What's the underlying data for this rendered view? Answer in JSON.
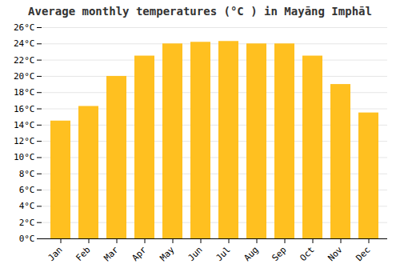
{
  "chart_data": {
    "type": "bar",
    "title": "Average monthly temperatures (°C ) in Mayāng Imphāl",
    "categories": [
      "Jan",
      "Feb",
      "Mar",
      "Apr",
      "May",
      "Jun",
      "Jul",
      "Aug",
      "Sep",
      "Oct",
      "Nov",
      "Dec"
    ],
    "values": [
      14.5,
      16.3,
      20.0,
      22.5,
      24.0,
      24.2,
      24.3,
      24.0,
      24.0,
      22.5,
      19.0,
      15.5
    ],
    "color": "#FFC020",
    "ylim": [
      0,
      26
    ],
    "yticks": [
      {
        "value": 0,
        "label": "0°C"
      },
      {
        "value": 2,
        "label": "2°C"
      },
      {
        "value": 4,
        "label": "4°C"
      },
      {
        "value": 6,
        "label": "6°C"
      },
      {
        "value": 8,
        "label": "8°C"
      },
      {
        "value": 10,
        "label": "10°C"
      },
      {
        "value": 12,
        "label": "12°C"
      },
      {
        "value": 14,
        "label": "14°C"
      },
      {
        "value": 16,
        "label": "16°C"
      },
      {
        "value": 18,
        "label": "18°C"
      },
      {
        "value": 20,
        "label": "20°C"
      },
      {
        "value": 22,
        "label": "22°C"
      },
      {
        "value": 24,
        "label": "24°C"
      },
      {
        "value": 26,
        "label": "26°C"
      }
    ],
    "grid": true
  }
}
